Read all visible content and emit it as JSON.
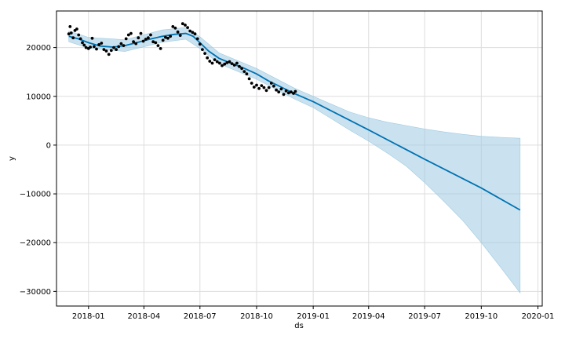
{
  "chart_data": {
    "type": "line",
    "title": "",
    "xlabel": "ds",
    "ylabel": "y",
    "ylim": [
      -33000,
      27500
    ],
    "xlim": [
      "2017-11-10",
      "2020-01-08"
    ],
    "grid": true,
    "legend": "none",
    "colors": {
      "forecast_line": "#0072B2",
      "interval_fill": "#9ECAE1",
      "observed_points": "#000000",
      "grid": "#DDDDDD"
    },
    "x_ticks": [
      {
        "value": "2018-01-01",
        "label": "2018-01"
      },
      {
        "value": "2018-04-01",
        "label": "2018-04"
      },
      {
        "value": "2018-07-01",
        "label": "2018-07"
      },
      {
        "value": "2018-10-01",
        "label": "2018-10"
      },
      {
        "value": "2019-01-01",
        "label": "2019-01"
      },
      {
        "value": "2019-04-01",
        "label": "2019-04"
      },
      {
        "value": "2019-07-01",
        "label": "2019-07"
      },
      {
        "value": "2019-10-01",
        "label": "2019-10"
      },
      {
        "value": "2020-01-01",
        "label": "2020-01"
      }
    ],
    "y_ticks": [
      {
        "value": 20000,
        "label": "20000"
      },
      {
        "value": 10000,
        "label": "10000"
      },
      {
        "value": 0,
        "label": "0"
      },
      {
        "value": -10000,
        "label": "−10000"
      },
      {
        "value": -20000,
        "label": "−20000"
      },
      {
        "value": -30000,
        "label": "−30000"
      }
    ],
    "series": [
      {
        "type": "scatter",
        "x": [
          "2017-11-30",
          "2017-12-02",
          "2017-12-04",
          "2017-12-07",
          "2017-12-10",
          "2017-12-13",
          "2017-12-16",
          "2017-12-19",
          "2017-12-22",
          "2017-12-25",
          "2017-12-28",
          "2018-01-01",
          "2018-01-04",
          "2018-01-07",
          "2018-01-10",
          "2018-01-14",
          "2018-01-18",
          "2018-01-22",
          "2018-01-26",
          "2018-01-30",
          "2018-02-03",
          "2018-02-07",
          "2018-02-11",
          "2018-02-15",
          "2018-02-19",
          "2018-02-23",
          "2018-02-27",
          "2018-03-03",
          "2018-03-07",
          "2018-03-11",
          "2018-03-15",
          "2018-03-19",
          "2018-03-23",
          "2018-03-27",
          "2018-03-31",
          "2018-04-04",
          "2018-04-08",
          "2018-04-12",
          "2018-04-16",
          "2018-04-20",
          "2018-04-24",
          "2018-04-28",
          "2018-05-02",
          "2018-05-06",
          "2018-05-10",
          "2018-05-14",
          "2018-05-18",
          "2018-05-22",
          "2018-05-26",
          "2018-05-30",
          "2018-06-03",
          "2018-06-07",
          "2018-06-11",
          "2018-06-15",
          "2018-06-19",
          "2018-06-23",
          "2018-06-27",
          "2018-07-01",
          "2018-07-05",
          "2018-07-09",
          "2018-07-13",
          "2018-07-17",
          "2018-07-21",
          "2018-07-25",
          "2018-07-29",
          "2018-08-02",
          "2018-08-06",
          "2018-08-10",
          "2018-08-14",
          "2018-08-18",
          "2018-08-22",
          "2018-08-26",
          "2018-08-30",
          "2018-09-03",
          "2018-09-07",
          "2018-09-11",
          "2018-09-15",
          "2018-09-19",
          "2018-09-23",
          "2018-09-27",
          "2018-10-01",
          "2018-10-05",
          "2018-10-09",
          "2018-10-13",
          "2018-10-17",
          "2018-10-21",
          "2018-10-25",
          "2018-10-29",
          "2018-11-02",
          "2018-11-06",
          "2018-11-10",
          "2018-11-14",
          "2018-11-18",
          "2018-11-22",
          "2018-11-26",
          "2018-11-30",
          "2018-12-03"
        ],
        "y": [
          22800,
          24300,
          23000,
          22000,
          23500,
          23800,
          22600,
          21800,
          21000,
          20500,
          20000,
          19800,
          20100,
          21900,
          20200,
          19700,
          20600,
          20900,
          19600,
          19300,
          18600,
          19400,
          20000,
          19600,
          20200,
          20800,
          20400,
          21800,
          22600,
          22900,
          21200,
          20800,
          22000,
          22900,
          21300,
          21700,
          22000,
          22600,
          21200,
          21000,
          20400,
          19800,
          21500,
          22100,
          21900,
          22300,
          24300,
          24000,
          23200,
          22500,
          24900,
          24600,
          24100,
          23400,
          23100,
          22800,
          21800,
          20700,
          19600,
          18800,
          17900,
          17200,
          16800,
          17500,
          17100,
          16800,
          16300,
          16600,
          16900,
          17100,
          16700,
          16400,
          16800,
          16100,
          15700,
          15100,
          14600,
          13600,
          12700,
          11900,
          12300,
          11600,
          12200,
          11800,
          11200,
          11800,
          12700,
          12100,
          11300,
          10900,
          11500,
          10400,
          11100,
          10700,
          10900,
          10600,
          11000
        ]
      },
      {
        "type": "line",
        "x": [
          "2017-11-30",
          "2017-12-15",
          "2018-01-01",
          "2018-01-20",
          "2018-02-10",
          "2018-03-01",
          "2018-03-20",
          "2018-04-10",
          "2018-05-01",
          "2018-05-20",
          "2018-06-08",
          "2018-06-20",
          "2018-07-01",
          "2018-07-15",
          "2018-08-01",
          "2018-08-20",
          "2018-09-10",
          "2018-10-01",
          "2018-10-20",
          "2018-11-10",
          "2018-12-01",
          "2019-01-01",
          "2019-04-01",
          "2019-07-01",
          "2019-10-01",
          "2019-12-03"
        ],
        "y": [
          22300,
          21800,
          21000,
          20300,
          20100,
          20400,
          21000,
          21700,
          22300,
          22700,
          22900,
          22300,
          21000,
          19300,
          17800,
          16800,
          15800,
          14600,
          13200,
          11900,
          10600,
          8900,
          3100,
          -2900,
          -8800,
          -13300
        ]
      },
      {
        "type": "area",
        "x": [
          "2017-11-30",
          "2018-01-01",
          "2018-03-01",
          "2018-05-01",
          "2018-06-08",
          "2018-07-01",
          "2018-08-01",
          "2018-10-01",
          "2018-12-01",
          "2019-01-01",
          "2019-02-01",
          "2019-03-01",
          "2019-04-01",
          "2019-05-01",
          "2019-06-01",
          "2019-07-01",
          "2019-08-01",
          "2019-09-01",
          "2019-10-01",
          "2019-11-01",
          "2019-12-03"
        ],
        "upper": [
          23400,
          22100,
          21600,
          23600,
          24100,
          22200,
          18900,
          15700,
          11700,
          10000,
          8300,
          6800,
          5600,
          4700,
          4000,
          3300,
          2700,
          2200,
          1800,
          1600,
          1400
        ],
        "lower": [
          21200,
          19900,
          19200,
          21100,
          21700,
          19800,
          16700,
          13500,
          9500,
          7700,
          5300,
          3100,
          800,
          -1600,
          -4300,
          -7700,
          -11500,
          -15500,
          -20000,
          -25000,
          -30300
        ]
      }
    ]
  }
}
